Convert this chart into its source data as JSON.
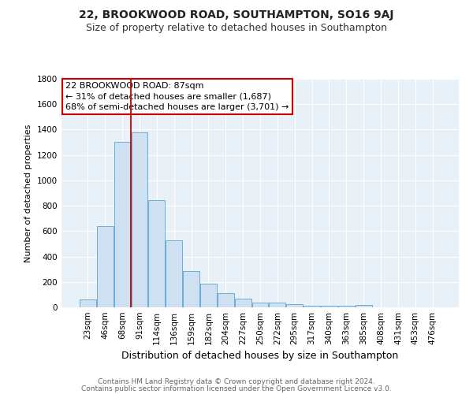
{
  "title1": "22, BROOKWOOD ROAD, SOUTHAMPTON, SO16 9AJ",
  "title2": "Size of property relative to detached houses in Southampton",
  "xlabel": "Distribution of detached houses by size in Southampton",
  "ylabel": "Number of detached properties",
  "categories": [
    "23sqm",
    "46sqm",
    "68sqm",
    "91sqm",
    "114sqm",
    "136sqm",
    "159sqm",
    "182sqm",
    "204sqm",
    "227sqm",
    "250sqm",
    "272sqm",
    "295sqm",
    "317sqm",
    "340sqm",
    "363sqm",
    "385sqm",
    "408sqm",
    "431sqm",
    "453sqm",
    "476sqm"
  ],
  "values": [
    60,
    638,
    1305,
    1375,
    845,
    525,
    285,
    185,
    110,
    70,
    38,
    38,
    25,
    15,
    15,
    15,
    20,
    0,
    0,
    0,
    0
  ],
  "bar_color": "#cfe0f0",
  "bar_edge_color": "#6aaed6",
  "background_color": "#e8f0f8",
  "grid_color": "#ffffff",
  "red_line_x": 2.5,
  "annotation_line1": "22 BROOKWOOD ROAD: 87sqm",
  "annotation_line2": "← 31% of detached houses are smaller (1,687)",
  "annotation_line3": "68% of semi-detached houses are larger (3,701) →",
  "annotation_box_color": "#ffffff",
  "annotation_box_edge": "#cc0000",
  "ylim": [
    0,
    1800
  ],
  "yticks": [
    0,
    200,
    400,
    600,
    800,
    1000,
    1200,
    1400,
    1600,
    1800
  ],
  "footer_line1": "Contains HM Land Registry data © Crown copyright and database right 2024.",
  "footer_line2": "Contains public sector information licensed under the Open Government Licence v3.0.",
  "title1_fontsize": 10,
  "title2_fontsize": 9,
  "xlabel_fontsize": 9,
  "ylabel_fontsize": 8,
  "tick_fontsize": 7.5,
  "annotation_fontsize": 8,
  "footer_fontsize": 6.5
}
